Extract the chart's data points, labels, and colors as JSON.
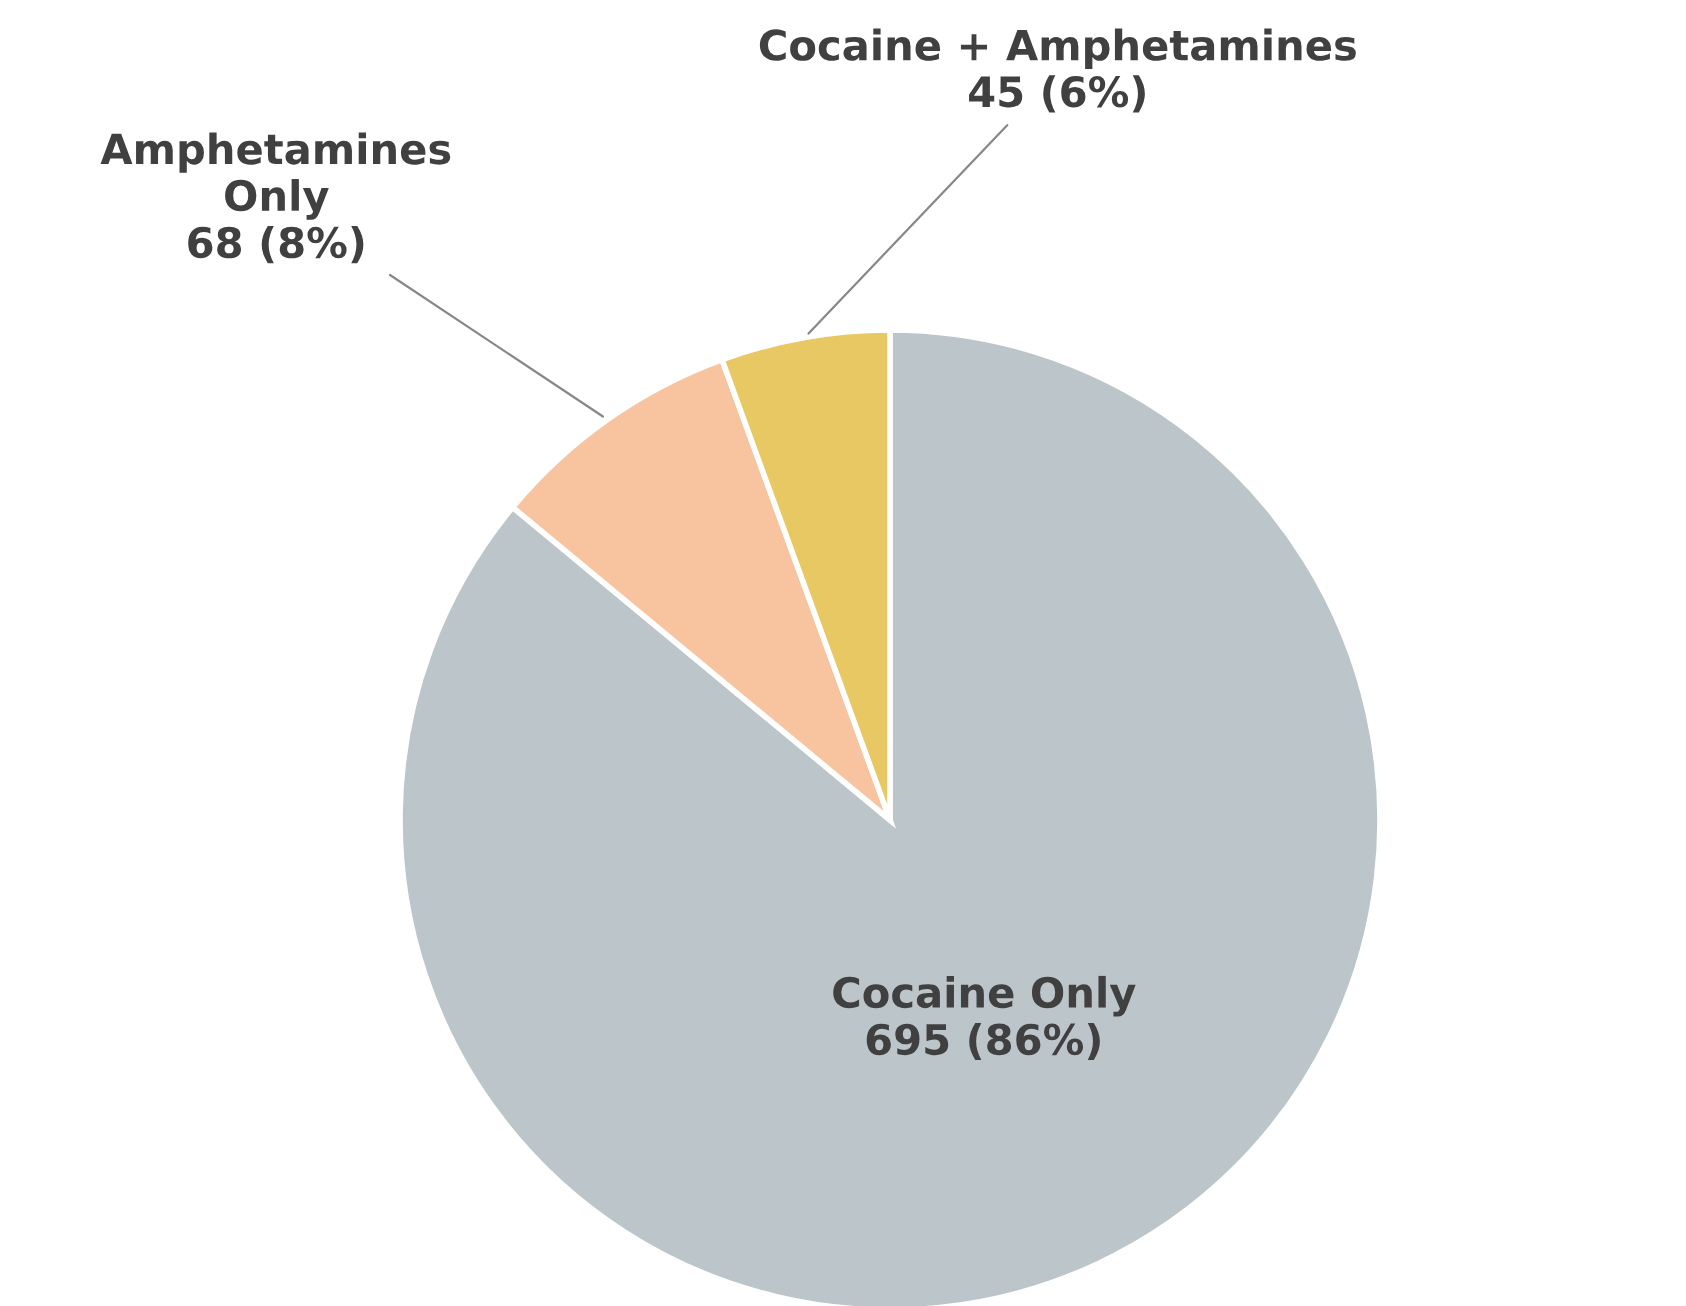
{
  "chart_data": {
    "type": "pie",
    "categories": [
      "Cocaine Only",
      "Amphetamines\nOnly",
      "Cocaine + Amphetamines"
    ],
    "values": [
      695,
      68,
      45
    ],
    "value_labels": [
      "695 (86%)",
      "68 (8%)",
      "45 (6%)"
    ],
    "colors": [
      "#bcc5c9",
      "#f8c4a0",
      "#e8c862"
    ]
  }
}
